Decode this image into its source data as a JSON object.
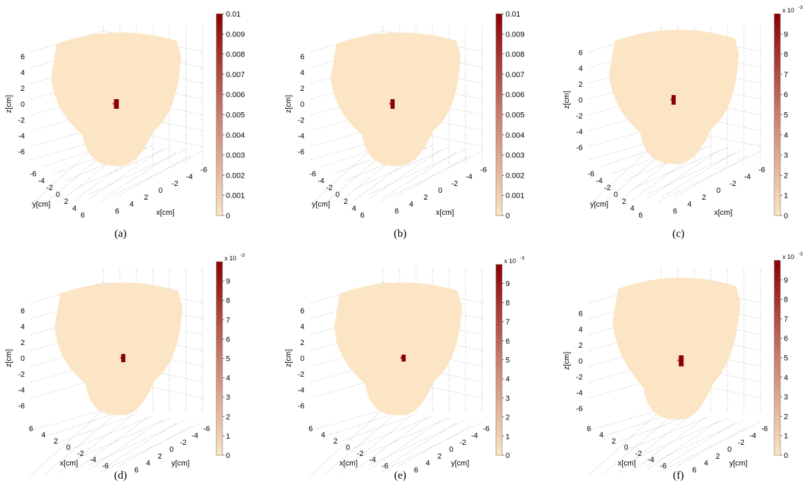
{
  "figure": {
    "panels": [
      {
        "caption": "(a)",
        "chart_data": {
          "type": "heatmap",
          "view": "3d-voxel",
          "axis_labels": {
            "x": "x[cm]",
            "y": "y[cm]",
            "z": "z[cm]"
          },
          "x_ticks": [
            "6",
            "4",
            "2",
            "0",
            "-2",
            "-4",
            "-6"
          ],
          "y_ticks": [
            "-6",
            "-4",
            "-2",
            "0",
            "2",
            "4",
            "6"
          ],
          "z_ticks": [
            "6",
            "4",
            "2",
            "0",
            "-2",
            "-4",
            "-6"
          ],
          "colorbar": {
            "ticks": [
              "0.01",
              "0.009",
              "0.008",
              "0.007",
              "0.006",
              "0.005",
              "0.004",
              "0.003",
              "0.002",
              "0.001",
              "0"
            ],
            "exponent_label": "",
            "range": [
              0,
              0.01
            ]
          },
          "colormap": [
            "#fbe5c4",
            "#8b0000"
          ],
          "hotspot": {
            "z": 0,
            "value": 0.01
          },
          "grid": true
        }
      },
      {
        "caption": "(b)",
        "chart_data": {
          "type": "heatmap",
          "view": "3d-voxel",
          "axis_labels": {
            "x": "x[cm]",
            "y": "y[cm]",
            "z": "z[cm]"
          },
          "x_ticks": [
            "6",
            "4",
            "2",
            "0",
            "-2",
            "-4",
            "-6"
          ],
          "y_ticks": [
            "-6",
            "-4",
            "-2",
            "0",
            "2",
            "4",
            "6"
          ],
          "z_ticks": [
            "6",
            "4",
            "2",
            "0",
            "-2",
            "-4",
            "-6"
          ],
          "colorbar": {
            "ticks": [
              "0.01",
              "0.009",
              "0.008",
              "0.007",
              "0.006",
              "0.005",
              "0.004",
              "0.003",
              "0.002",
              "0.001",
              "0"
            ],
            "exponent_label": "",
            "range": [
              0,
              0.01
            ]
          },
          "colormap": [
            "#fbe5c4",
            "#8b0000"
          ],
          "hotspot": {
            "z": 0,
            "value": 0.01
          },
          "grid": true
        }
      },
      {
        "caption": "(c)",
        "chart_data": {
          "type": "heatmap",
          "view": "3d-voxel",
          "axis_labels": {
            "x": "x[cm]",
            "y": "y[cm]",
            "z": "z[cm]"
          },
          "x_ticks": [
            "6",
            "4",
            "2",
            "0",
            "-2",
            "-4",
            "-6"
          ],
          "y_ticks": [
            "-6",
            "-4",
            "-2",
            "0",
            "2",
            "4",
            "6"
          ],
          "z_ticks": [
            "6",
            "4",
            "2",
            "0",
            "-2",
            "-4",
            "-6"
          ],
          "colorbar": {
            "ticks": [
              "9",
              "8",
              "7",
              "6",
              "5",
              "4",
              "3",
              "2",
              "1",
              "0"
            ],
            "exponent_label": "x 10",
            "exponent": "-3",
            "range": [
              0,
              10
            ]
          },
          "colormap": [
            "#fbe5c4",
            "#8b0000"
          ],
          "hotspot": {
            "z": 0,
            "value": 10
          },
          "grid": true
        }
      },
      {
        "caption": "(d)",
        "chart_data": {
          "type": "heatmap",
          "view": "3d-voxel",
          "axis_labels": {
            "x": "x[cm]",
            "y": "y[cm]",
            "z": "z[cm]"
          },
          "x_ticks": [
            "6",
            "4",
            "2",
            "0",
            "-2",
            "-4",
            "-6"
          ],
          "y_ticks": [
            "6",
            "4",
            "2",
            "0",
            "-2",
            "-4",
            "-6"
          ],
          "z_ticks": [
            "6",
            "4",
            "2",
            "0",
            "-2",
            "-4",
            "-6"
          ],
          "colorbar": {
            "ticks": [
              "9",
              "8",
              "7",
              "6",
              "5",
              "4",
              "3",
              "2",
              "1",
              "0"
            ],
            "exponent_label": "x 10",
            "exponent": "-3",
            "range": [
              0,
              10
            ]
          },
          "colormap": [
            "#fbe5c4",
            "#8b0000"
          ],
          "hotspot": {
            "z": 0,
            "value": 10
          },
          "grid": true
        }
      },
      {
        "caption": "(e)",
        "chart_data": {
          "type": "heatmap",
          "view": "3d-voxel",
          "axis_labels": {
            "x": "x[cm]",
            "y": "y[cm]",
            "z": "z[cm]"
          },
          "x_ticks": [
            "6",
            "4",
            "2",
            "0",
            "-2",
            "-4",
            "-6"
          ],
          "y_ticks": [
            "6",
            "4",
            "2",
            "0",
            "-2",
            "-4",
            "-6"
          ],
          "z_ticks": [
            "6",
            "4",
            "2",
            "0",
            "-2",
            "-4",
            "-6"
          ],
          "colorbar": {
            "ticks": [
              "9",
              "8",
              "7",
              "6",
              "5",
              "4",
              "3",
              "2",
              "1",
              "0"
            ],
            "exponent_label": "x 10",
            "exponent": "-3",
            "range": [
              0,
              10
            ]
          },
          "colormap": [
            "#fbe5c4",
            "#8b0000"
          ],
          "hotspot": {
            "z": 0,
            "value": 10
          },
          "grid": true
        }
      },
      {
        "caption": "(f)",
        "chart_data": {
          "type": "heatmap",
          "view": "3d-voxel",
          "axis_labels": {
            "x": "x[cm]",
            "y": "y[cm]",
            "z": "z[cm]"
          },
          "x_ticks": [
            "6",
            "4",
            "2",
            "0",
            "-2",
            "-4",
            "-6"
          ],
          "y_ticks": [
            "6",
            "4",
            "2",
            "0",
            "-2",
            "-4",
            "-6"
          ],
          "z_ticks": [
            "6",
            "4",
            "2",
            "0",
            "-2",
            "-4",
            "-6"
          ],
          "colorbar": {
            "ticks": [
              "9",
              "8",
              "7",
              "6",
              "5",
              "4",
              "3",
              "2",
              "1",
              "0"
            ],
            "exponent_label": "x 10",
            "exponent": "-3",
            "range": [
              0,
              10
            ]
          },
          "colormap": [
            "#fbe5c4",
            "#8b0000"
          ],
          "hotspot": {
            "z": 0,
            "value": 10
          },
          "grid": true
        }
      }
    ]
  }
}
